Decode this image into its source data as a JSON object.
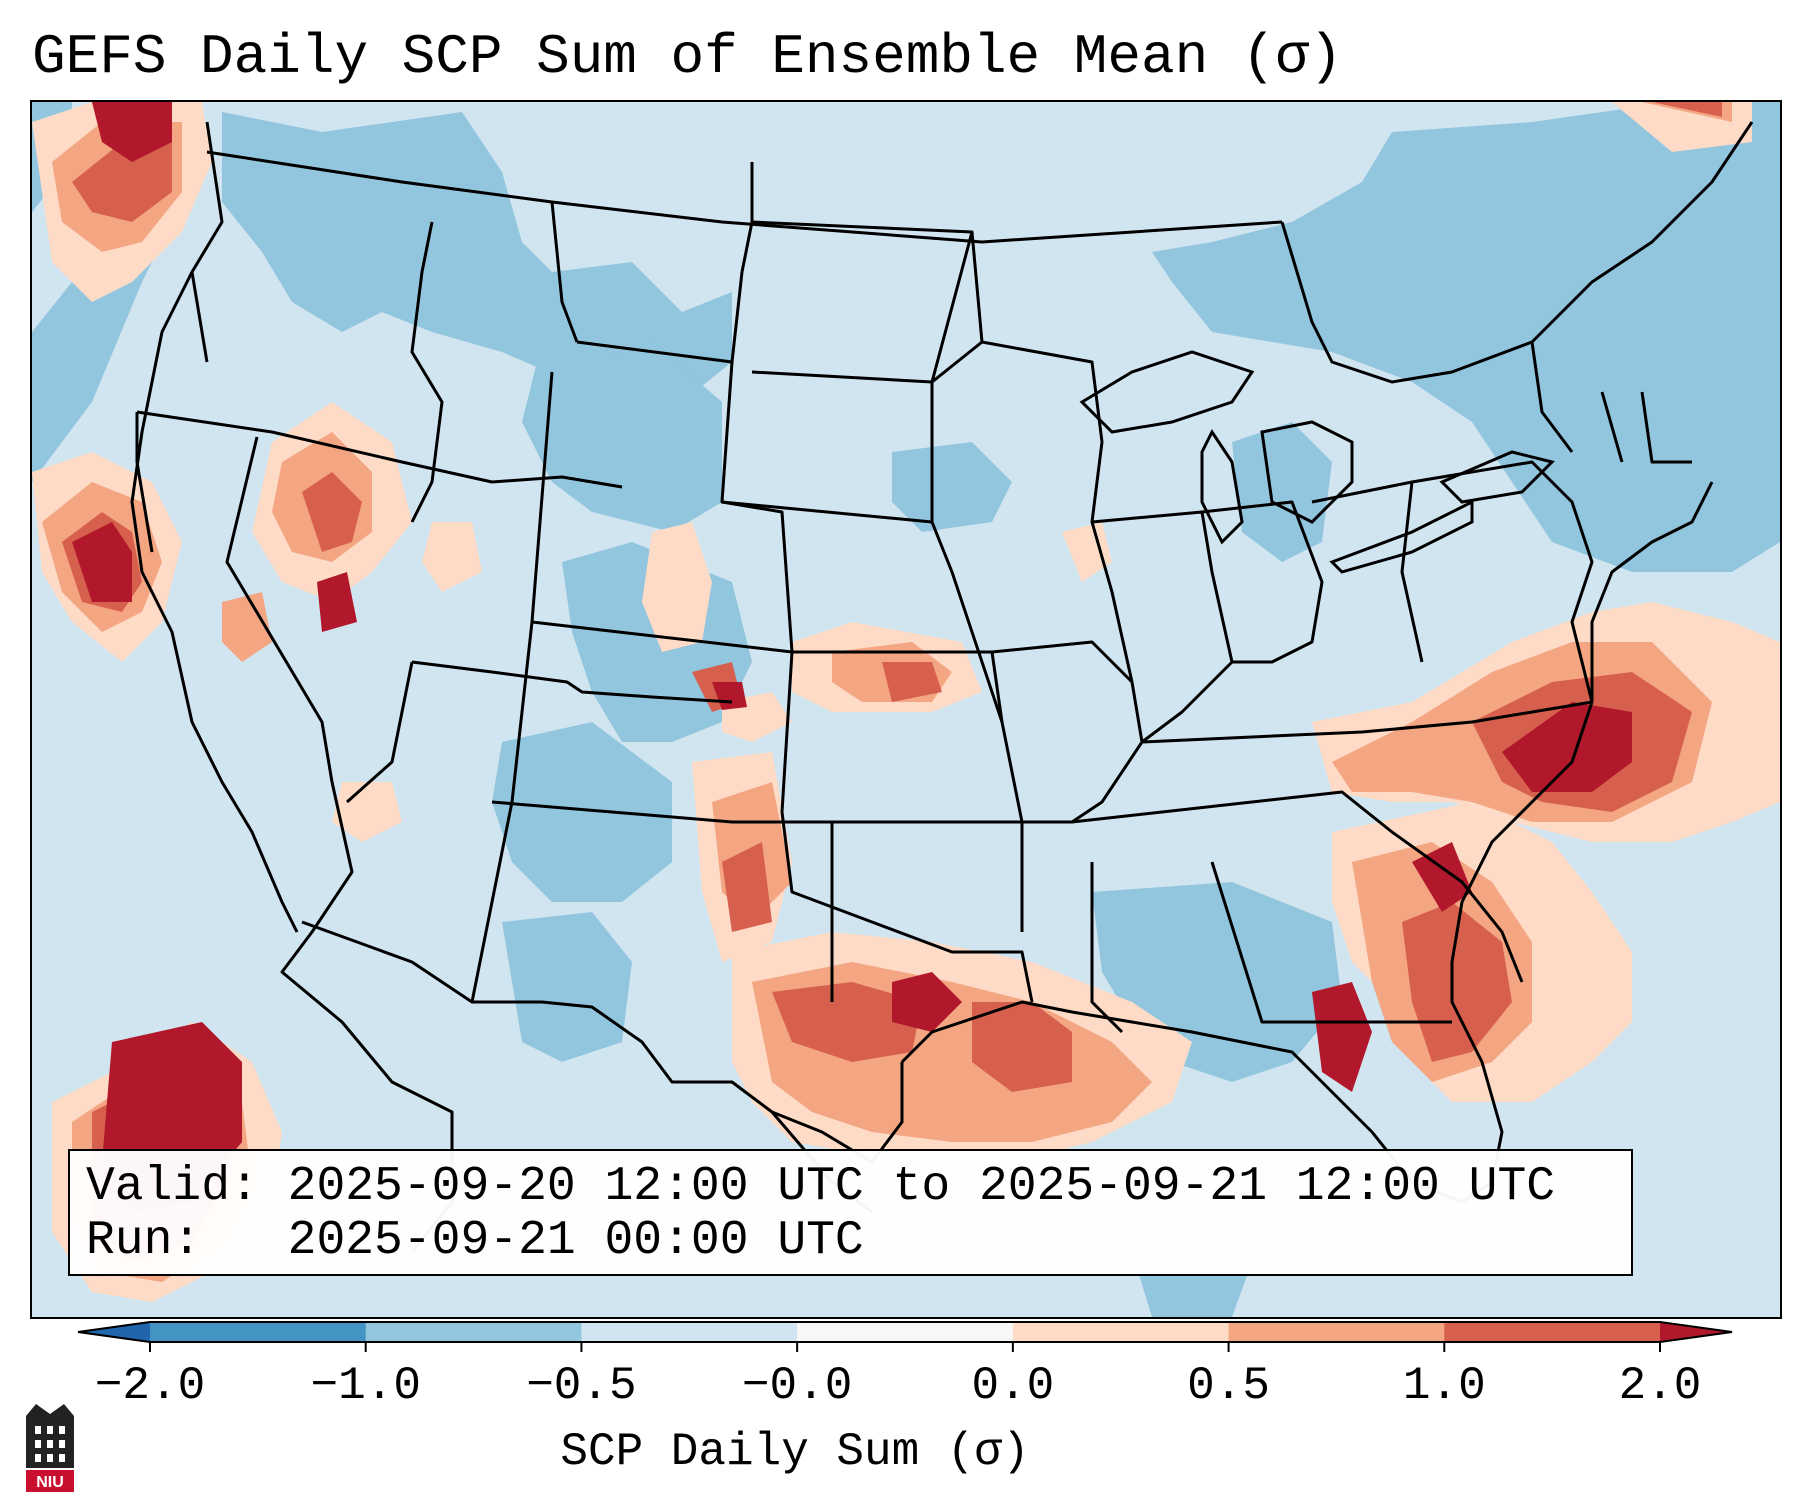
{
  "title": "GEFS Daily SCP Sum of Ensemble Mean (σ)",
  "info": {
    "valid_label": "Valid:",
    "valid_value": "2025-09-20 12:00 UTC to 2025-09-21 12:00 UTC",
    "run_label": "Run:",
    "run_value": "2025-09-21 00:00 UTC"
  },
  "colorbar": {
    "label": "SCP Daily Sum (σ)",
    "ticks": [
      "−2.0",
      "−1.0",
      "−0.5",
      "−0.0",
      "0.0",
      "0.5",
      "1.0",
      "2.0"
    ],
    "colors": [
      "#4393c3",
      "#92c5de",
      "#d1e5f0",
      "#f7f7f7",
      "#fddbc7",
      "#f4a582",
      "#d6604d"
    ],
    "extend_low": "#2166ac",
    "extend_high": "#b2182b"
  },
  "logo": {
    "text": "NIU",
    "name": "niu-logo"
  },
  "colors": {
    "dark_blue": "#92c5de",
    "light_blue": "#d1e5f0",
    "light_red": "#fddbc7",
    "mid_red": "#f4a582",
    "red": "#d6604d",
    "dark_red": "#b2182b"
  }
}
